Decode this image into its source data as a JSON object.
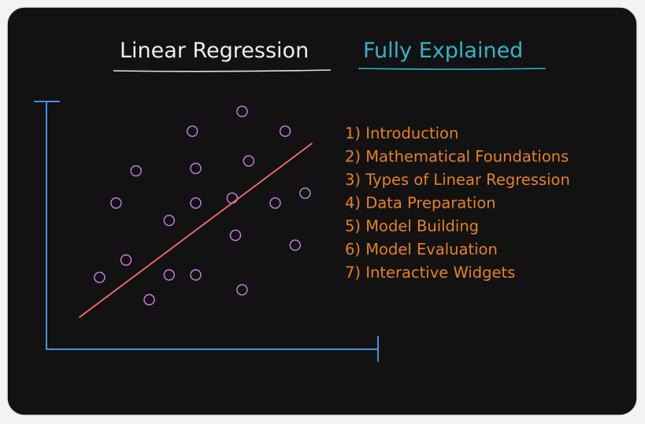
{
  "title": {
    "main": "Linear Regression",
    "sub": "Fully Explained"
  },
  "colors": {
    "canvas_bg": "#121212",
    "frame_stroke": "#e6e6e6",
    "title_text": "#eeeeee",
    "subtitle_text": "#35b3c9",
    "axis": "#4a90d9",
    "point": "#d07ee8",
    "line": "#ff6b6b",
    "list_text": "#e8821e"
  },
  "toc": [
    "1) Introduction",
    "2) Mathematical Foundations",
    "3) Types of Linear Regression",
    "4) Data Preparation",
    "5) Model Building",
    "6) Model Evaluation",
    "7) Interactive Widgets"
  ],
  "chart_data": {
    "type": "scatter",
    "title": "",
    "xlabel": "",
    "ylabel": "",
    "xlim": [
      0,
      10
    ],
    "ylim": [
      0,
      10
    ],
    "grid": false,
    "legend": "none",
    "points": [
      {
        "x": 1.6,
        "y": 2.9
      },
      {
        "x": 2.4,
        "y": 3.6
      },
      {
        "x": 2.1,
        "y": 5.9
      },
      {
        "x": 2.7,
        "y": 7.2
      },
      {
        "x": 3.1,
        "y": 2.0
      },
      {
        "x": 3.7,
        "y": 3.0
      },
      {
        "x": 3.7,
        "y": 5.2
      },
      {
        "x": 4.5,
        "y": 3.0
      },
      {
        "x": 4.4,
        "y": 8.8
      },
      {
        "x": 4.5,
        "y": 7.3
      },
      {
        "x": 4.5,
        "y": 5.9
      },
      {
        "x": 5.6,
        "y": 6.1
      },
      {
        "x": 5.7,
        "y": 4.6
      },
      {
        "x": 5.9,
        "y": 2.4
      },
      {
        "x": 5.9,
        "y": 9.6
      },
      {
        "x": 6.1,
        "y": 7.6
      },
      {
        "x": 6.9,
        "y": 5.9
      },
      {
        "x": 7.2,
        "y": 8.8
      },
      {
        "x": 7.5,
        "y": 4.2
      },
      {
        "x": 7.8,
        "y": 6.3
      }
    ],
    "regression_line": {
      "x": [
        1.0,
        8.0
      ],
      "y": [
        1.3,
        8.3
      ]
    }
  }
}
